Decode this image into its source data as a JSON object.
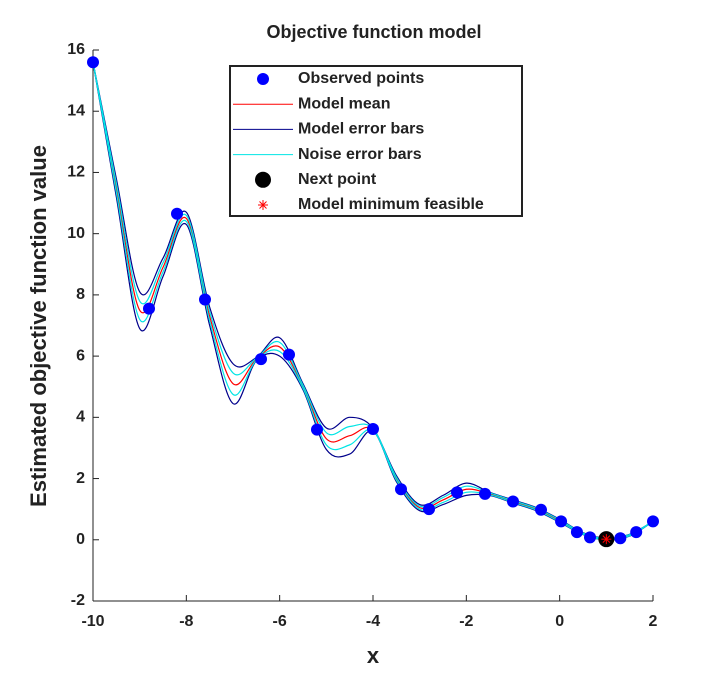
{
  "chart_data": {
    "type": "surrogate",
    "title": "Objective function model",
    "xlabel": "x",
    "ylabel": "Estimated objective function value",
    "xlim": [
      -10,
      2
    ],
    "xticks": [
      -10,
      -8,
      -6,
      -4,
      -2,
      0,
      2
    ],
    "ylim": [
      -2,
      16
    ],
    "yticks": [
      -2,
      0,
      2,
      4,
      6,
      8,
      10,
      12,
      14,
      16
    ],
    "curve_x": [
      -10,
      -9.5,
      -9,
      -8.5,
      -8,
      -7.5,
      -7,
      -6.5,
      -6,
      -5.5,
      -5,
      -4.5,
      -4,
      -3.5,
      -3,
      -2.5,
      -2,
      -1.5,
      -1,
      -0.5,
      0,
      0.5,
      1,
      1.5,
      2
    ],
    "mean": {
      "name": "Model mean",
      "color": "#ff0000",
      "values": [
        15.6,
        11.5,
        7.5,
        8.9,
        10.5,
        7.3,
        5.1,
        5.9,
        6.3,
        5.0,
        3.3,
        3.4,
        3.6,
        2.0,
        1.05,
        1.3,
        1.65,
        1.5,
        1.25,
        1.0,
        0.62,
        0.2,
        0.02,
        0.15,
        0.6
      ]
    },
    "model_error": {
      "name": "Model error bars",
      "color": "#00008b",
      "upper": [
        15.6,
        11.8,
        8.1,
        9.2,
        10.7,
        7.6,
        5.75,
        5.95,
        6.6,
        5.1,
        3.65,
        4.0,
        3.65,
        2.1,
        1.15,
        1.45,
        1.85,
        1.55,
        1.3,
        1.05,
        0.67,
        0.23,
        0.05,
        0.18,
        0.6
      ],
      "lower": [
        15.6,
        11.2,
        6.9,
        8.6,
        10.3,
        7.0,
        4.45,
        5.85,
        6.0,
        4.9,
        2.95,
        2.8,
        3.55,
        1.9,
        0.95,
        1.15,
        1.45,
        1.45,
        1.2,
        0.95,
        0.57,
        0.17,
        -0.01,
        0.12,
        0.6
      ]
    },
    "noise_error": {
      "name": "Noise error bars",
      "color": "#00e5e5",
      "upper": [
        15.6,
        11.65,
        7.8,
        9.05,
        10.6,
        7.45,
        5.45,
        5.93,
        6.45,
        5.05,
        3.5,
        3.7,
        3.63,
        2.05,
        1.1,
        1.38,
        1.75,
        1.53,
        1.28,
        1.03,
        0.65,
        0.22,
        0.04,
        0.17,
        0.6
      ],
      "lower": [
        15.6,
        11.35,
        7.2,
        8.75,
        10.4,
        7.15,
        4.75,
        5.87,
        6.15,
        4.95,
        3.1,
        3.1,
        3.57,
        1.95,
        1.0,
        1.22,
        1.55,
        1.47,
        1.22,
        0.97,
        0.59,
        0.18,
        0,
        0.13,
        0.6
      ]
    },
    "observed": {
      "name": "Observed points",
      "color": "#0000ff",
      "x": [
        -10,
        -8.8,
        -8.2,
        -7.6,
        -6.4,
        -5.8,
        -5.2,
        -4.0,
        -3.4,
        -2.8,
        -2.2,
        -1.6,
        -1.0,
        -0.4,
        0.03,
        0.37,
        0.65,
        1.3,
        1.64,
        2.0
      ],
      "values": [
        15.6,
        7.55,
        10.65,
        7.85,
        5.9,
        6.05,
        3.6,
        3.62,
        1.65,
        1.0,
        1.55,
        1.5,
        1.25,
        0.98,
        0.6,
        0.25,
        0.08,
        0.05,
        0.25,
        0.6
      ]
    },
    "next_point": {
      "name": "Next point",
      "color": "#000000",
      "x": [
        1.0
      ],
      "values": [
        0.02
      ]
    },
    "model_minimum": {
      "name": "Model minimum feasible",
      "color": "#ff0000",
      "x": [
        1.0
      ],
      "values": [
        0.02
      ]
    }
  }
}
